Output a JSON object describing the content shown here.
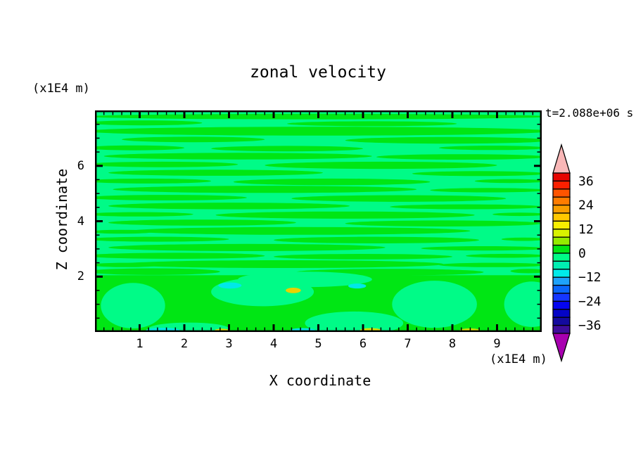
{
  "page": {
    "background": "#ffffff"
  },
  "chart_data": {
    "type": "filled_contour",
    "title": "zonal velocity",
    "time_annotation": "t=2.088e+06 s",
    "xlabel": "X coordinate",
    "x_unit": "(x1E4 m)",
    "ylabel": "Z coordinate",
    "y_unit": "(x1E4 m)",
    "xlim": [
      0,
      10
    ],
    "zlim": [
      0,
      8
    ],
    "x_major_ticks": [
      1,
      2,
      3,
      4,
      5,
      6,
      7,
      8,
      9
    ],
    "x_minor_step": 0.2,
    "z_major_ticks": [
      2,
      4,
      6
    ],
    "z_minor_step": 0.5,
    "grid": false,
    "colorbar": {
      "position": "right",
      "contour_interval": 4,
      "min_level": -40,
      "max_level": 40,
      "tick_labels": [
        "36",
        "24",
        "12",
        "0",
        "−12",
        "−24",
        "−36"
      ],
      "band_colors_top_to_bottom": [
        "#e60400",
        "#fb2000",
        "#ff5400",
        "#ff7c00",
        "#f99e00",
        "#ffc800",
        "#f8f000",
        "#d8f200",
        "#94ec00",
        "#00e614",
        "#00fb87",
        "#00efb2",
        "#00eaea",
        "#1ea2fa",
        "#0a66fa",
        "#1536ff",
        "#0505f0",
        "#0404c6",
        "#140a9e",
        "#3f0d9b"
      ],
      "over_arrow_color": "#f9b7b7",
      "under_arrow_color": "#a800b0"
    },
    "field_summary": {
      "description": "Zonal velocity field dominated by values near zero: wavy horizontal streaks alternate between the 0..4 band (green) and -4..0 band (spring green) above z=2; below z=2 larger smooth cells of the same two bands with a few small pockets near -8..-12 (cyan) and +8..+16 (yellow) at z=1.5 and along the bottom boundary.",
      "dominant_bands": [
        "0 to 4 (green)",
        "-4 to 0 (spring green)"
      ]
    },
    "pattern": {
      "bg_color": "#00fb87",
      "streak_color": "#00e614",
      "bottom_layer_top_z": 2.05,
      "streaks": [
        [
          5.0,
          7.78,
          5.2,
          0.1
        ],
        [
          1.1,
          7.55,
          1.3,
          0.09
        ],
        [
          6.2,
          7.52,
          1.9,
          0.09
        ],
        [
          5.0,
          7.25,
          5.2,
          0.16
        ],
        [
          2.2,
          6.95,
          1.6,
          0.1
        ],
        [
          7.9,
          6.92,
          2.3,
          0.12
        ],
        [
          0.9,
          6.65,
          1.1,
          0.09
        ],
        [
          4.3,
          6.62,
          1.7,
          0.1
        ],
        [
          8.9,
          6.65,
          1.2,
          0.08
        ],
        [
          3.2,
          6.35,
          3.0,
          0.12
        ],
        [
          8.2,
          6.32,
          1.9,
          0.1
        ],
        [
          1.5,
          6.05,
          1.7,
          0.1
        ],
        [
          6.4,
          6.02,
          2.6,
          0.13
        ],
        [
          2.7,
          5.75,
          2.4,
          0.11
        ],
        [
          8.6,
          5.72,
          1.5,
          0.09
        ],
        [
          1.2,
          5.45,
          1.4,
          0.09
        ],
        [
          5.3,
          5.42,
          2.2,
          0.12
        ],
        [
          9.3,
          5.45,
          0.8,
          0.07
        ],
        [
          3.8,
          5.15,
          3.4,
          0.13
        ],
        [
          8.8,
          5.12,
          1.3,
          0.08
        ],
        [
          1.6,
          4.85,
          1.8,
          0.1
        ],
        [
          6.8,
          4.82,
          2.4,
          0.12
        ],
        [
          3.0,
          4.55,
          2.7,
          0.12
        ],
        [
          8.3,
          4.52,
          1.7,
          0.09
        ],
        [
          1.0,
          4.25,
          1.2,
          0.08
        ],
        [
          5.6,
          4.22,
          2.9,
          0.13
        ],
        [
          9.5,
          4.25,
          0.6,
          0.06
        ],
        [
          2.4,
          3.95,
          2.1,
          0.11
        ],
        [
          7.8,
          3.92,
          2.2,
          0.11
        ],
        [
          4.6,
          3.65,
          3.8,
          0.14
        ],
        [
          0.6,
          3.62,
          0.7,
          0.07
        ],
        [
          1.4,
          3.35,
          1.6,
          0.09
        ],
        [
          6.3,
          3.32,
          2.3,
          0.12
        ],
        [
          9.6,
          3.35,
          0.5,
          0.06
        ],
        [
          3.4,
          3.05,
          3.1,
          0.13
        ],
        [
          8.7,
          3.02,
          1.4,
          0.08
        ],
        [
          1.8,
          2.75,
          2.0,
          0.11
        ],
        [
          6.0,
          2.72,
          2.0,
          0.1
        ],
        [
          9.2,
          2.75,
          0.9,
          0.07
        ],
        [
          4.2,
          2.45,
          3.6,
          0.14
        ],
        [
          0.7,
          2.42,
          0.8,
          0.08
        ],
        [
          8.9,
          2.42,
          1.2,
          0.08
        ],
        [
          1.3,
          2.18,
          1.5,
          0.12
        ],
        [
          6.6,
          2.16,
          2.1,
          0.12
        ],
        [
          9.7,
          2.2,
          0.4,
          0.08
        ]
      ],
      "bottom_blobs": [
        [
          0.85,
          0.95,
          0.72,
          0.82
        ],
        [
          3.75,
          1.45,
          1.15,
          0.52
        ],
        [
          4.7,
          1.9,
          1.5,
          0.28
        ],
        [
          7.6,
          1.0,
          0.95,
          0.85
        ],
        [
          9.78,
          1.0,
          0.62,
          0.82
        ],
        [
          5.8,
          0.32,
          1.1,
          0.42
        ],
        [
          2.1,
          0.12,
          0.9,
          0.22
        ]
      ],
      "spots": [
        {
          "x": 3.02,
          "z": 1.68,
          "rx": 0.26,
          "rz": 0.11,
          "c": "#00e8e8"
        },
        {
          "x": 5.87,
          "z": 1.66,
          "rx": 0.2,
          "rz": 0.09,
          "c": "#00e8e8"
        },
        {
          "x": 4.44,
          "z": 1.5,
          "rx": 0.17,
          "rz": 0.1,
          "c": "#e8d200"
        },
        {
          "x": 1.52,
          "z": 0.06,
          "rx": 0.38,
          "rz": 0.09,
          "c": "#00e8e8"
        },
        {
          "x": 4.65,
          "z": 0.06,
          "rx": 0.28,
          "rz": 0.08,
          "c": "#00e8e8"
        },
        {
          "x": 2.84,
          "z": 0.05,
          "rx": 0.16,
          "rz": 0.07,
          "c": "#d8e400"
        },
        {
          "x": 6.17,
          "z": 0.06,
          "rx": 0.24,
          "rz": 0.08,
          "c": "#d8e400"
        },
        {
          "x": 8.39,
          "z": 0.05,
          "rx": 0.23,
          "rz": 0.08,
          "c": "#d8e400"
        }
      ]
    }
  }
}
